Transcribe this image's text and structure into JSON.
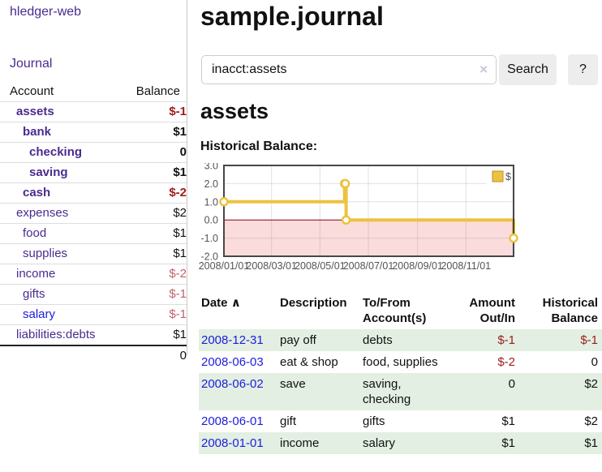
{
  "colors": {
    "link_purple": "#4a2b8f",
    "link_blue": "#1d1ddd",
    "negative_strong": "#9e1b1b",
    "negative_soft": "#c2616b",
    "row_shade_green": "#e2efe2",
    "series_gold": "#edc240",
    "negative_region_pink": "#fbdcdc",
    "zero_line_red": "#8b0000"
  },
  "sidebar": {
    "app_title": "hledger-web",
    "journal_link": "Journal",
    "accounts_table": {
      "account_header": "Account",
      "balance_header": "Balance",
      "rows": [
        {
          "name": "assets",
          "balance": "$-1",
          "depth": 1,
          "bold": true,
          "balance_class": "neg-strong"
        },
        {
          "name": "bank",
          "balance": "$1",
          "depth": 2,
          "bold": true,
          "balance_class": ""
        },
        {
          "name": "checking",
          "balance": "0",
          "depth": 3,
          "bold": true,
          "balance_class": ""
        },
        {
          "name": "saving",
          "balance": "$1",
          "depth": 3,
          "bold": true,
          "balance_class": ""
        },
        {
          "name": "cash",
          "balance": "$-2",
          "depth": 2,
          "bold": true,
          "balance_class": "neg-strong"
        },
        {
          "name": "expenses",
          "balance": "$2",
          "depth": 1,
          "bold": false,
          "balance_class": ""
        },
        {
          "name": "food",
          "balance": "$1",
          "depth": 2,
          "bold": false,
          "balance_class": ""
        },
        {
          "name": "supplies",
          "balance": "$1",
          "depth": 2,
          "bold": false,
          "balance_class": ""
        },
        {
          "name": "income",
          "balance": "$-2",
          "depth": 1,
          "bold": false,
          "balance_class": "neg-soft"
        },
        {
          "name": "gifts",
          "balance": "$-1",
          "depth": 2,
          "bold": false,
          "balance_class": "neg-soft"
        },
        {
          "name": "salary",
          "balance": "$-1",
          "depth": 2,
          "bold": false,
          "balance_class": "neg-soft",
          "link_color": "blue"
        },
        {
          "name": "liabilities:debts",
          "balance": "$1",
          "depth": 1,
          "bold": false,
          "balance_class": ""
        }
      ],
      "total": "0"
    }
  },
  "main": {
    "page_title": "sample.journal",
    "search": {
      "value": "inacct:assets",
      "clear_icon": "×",
      "search_button": "Search",
      "help_button": "?"
    },
    "account_heading": "assets",
    "chart_title": "Historical Balance:",
    "register": {
      "headers": {
        "date": "Date",
        "sort_icon": "∧",
        "description": "Description",
        "account_line1": "To/From",
        "account_line2": "Account(s)",
        "amount_line1": "Amount",
        "amount_line2": "Out/In",
        "balance_line1": "Historical",
        "balance_line2": "Balance"
      },
      "rows": [
        {
          "date": "2008-12-31",
          "description": "pay off",
          "accounts": "debts",
          "amount": "$-1",
          "amount_neg": true,
          "balance": "$-1",
          "balance_neg": true,
          "shaded": true
        },
        {
          "date": "2008-06-03",
          "description": "eat & shop",
          "accounts": "food, supplies",
          "amount": "$-2",
          "amount_neg": true,
          "balance": "0",
          "balance_neg": false,
          "shaded": false
        },
        {
          "date": "2008-06-02",
          "description": "save",
          "accounts": "saving, checking",
          "amount": "0",
          "amount_neg": false,
          "balance": "$2",
          "balance_neg": false,
          "shaded": true
        },
        {
          "date": "2008-06-01",
          "description": "gift",
          "accounts": "gifts",
          "amount": "$1",
          "amount_neg": false,
          "balance": "$2",
          "balance_neg": false,
          "shaded": false
        },
        {
          "date": "2008-01-01",
          "description": "income",
          "accounts": "salary",
          "amount": "$1",
          "amount_neg": false,
          "balance": "$1",
          "balance_neg": false,
          "shaded": true
        }
      ]
    }
  },
  "chart_data": {
    "type": "line",
    "step": true,
    "title": "Historical Balance",
    "series": [
      {
        "name": "$",
        "color": "#edc240",
        "points": [
          {
            "x": "2008-01-01",
            "y": 1
          },
          {
            "x": "2008-06-01",
            "y": 2
          },
          {
            "x": "2008-06-02",
            "y": 2
          },
          {
            "x": "2008-06-03",
            "y": 0
          },
          {
            "x": "2008-12-31",
            "y": -1
          }
        ]
      }
    ],
    "x_range": [
      "2008-01-01",
      "2008-12-31"
    ],
    "x_tick_labels": [
      "2008/01/01",
      "2008/03/01",
      "2008/05/01",
      "2008/07/01",
      "2008/09/01",
      "2008/11/01"
    ],
    "y_tick_labels": [
      "3.0",
      "2.0",
      "1.0",
      "0.0",
      "-1.0",
      "-2.0"
    ],
    "ylim": [
      -2,
      3
    ],
    "legend_label": "$",
    "legend_position": "top-right",
    "grid": true,
    "negative_region_color": "#fbdcdc",
    "zero_line_color": "#8b0000"
  }
}
